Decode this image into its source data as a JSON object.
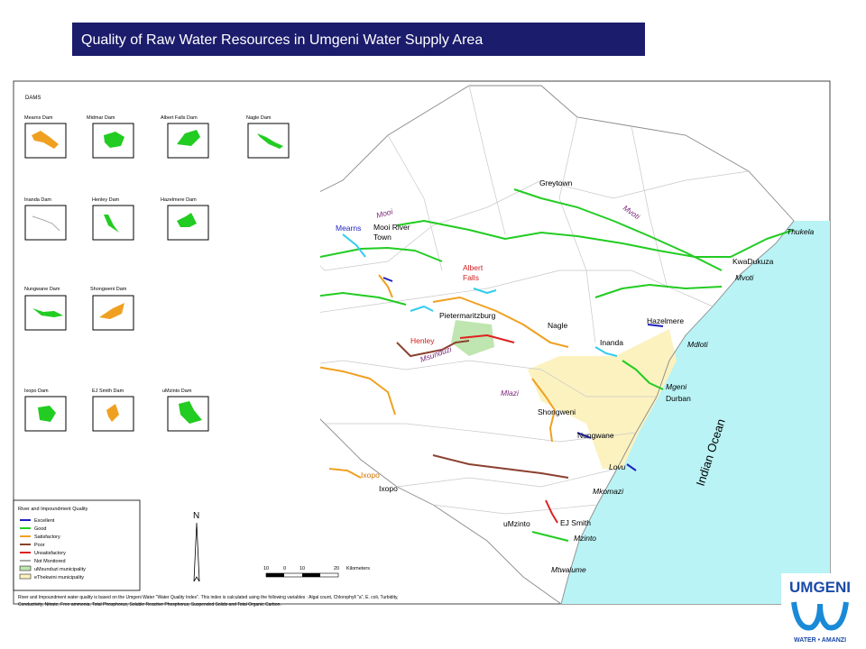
{
  "header": {
    "title": "Quality of Raw Water Resources in Umgeni Water Supply Area"
  },
  "dams": {
    "heading": "DAMS",
    "items": [
      "Mearns Dam",
      "Midmar Dam",
      "Albert Falls Dam",
      "Nagle Dam",
      "Inanda Dam",
      "Henley Dam",
      "Hazelmere Dam",
      "Nungwane Dam",
      "Shongweni Dam",
      "Ixopo Dam",
      "EJ Smith Dam",
      "uMzinto Dam"
    ]
  },
  "legend": {
    "title": "River and Impoundment Quality",
    "items": [
      "Excellent",
      "Good",
      "Satisfactory",
      "Poor",
      "Unsatisfactory",
      "Not Monitored",
      "uMsunduzi municipality",
      "eThekwini municipality"
    ]
  },
  "north": "N",
  "scale": {
    "labels": [
      "10",
      "0",
      "10",
      "20"
    ],
    "unit": "Kilometers"
  },
  "footnote": [
    "River and Impoundment water quality is based on the Umgeni Water \"Water Quality Index\". This index is calculated using the following variables : Algal count, Chlorophyll \"a\", E. coli, Turbidity,",
    "Conductivity, Nitrate, Free ammonia, Total Phosphorus, Soluble Reactive Phosphorus, Suspended Solids and Total Organic Carbon."
  ],
  "places": [
    "Greytown",
    "Mooi",
    "Mearns",
    "Mooi River",
    "Town",
    "Albert",
    "Falls",
    "Pietermaritzburg",
    "Henley",
    "Msunduzi",
    "Nagle",
    "Inanda",
    "Hazelmere",
    "Mdloti",
    "Mgeni",
    "Durban",
    "Mlazi",
    "Shongweni",
    "Nungwane",
    "Lovu",
    "Mkomazi",
    "EJ Smith",
    "Mzinto",
    "uMzinto",
    "Mtwalume",
    "Ixopo",
    "Ixopo",
    "Thukela",
    "KwaDukuza",
    "Mvoti",
    "Mvoti",
    "Indian Ocean"
  ],
  "logo": {
    "name": "UMGENI",
    "tagline": "WATER • AMANZI"
  }
}
